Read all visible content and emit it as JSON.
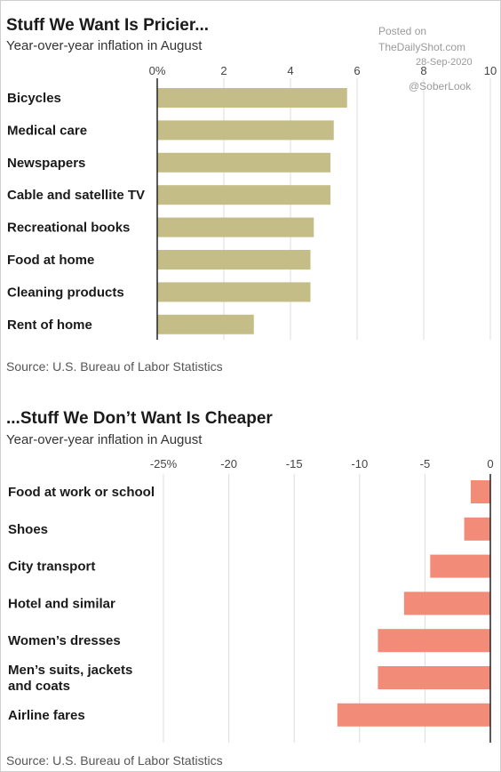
{
  "watermark": {
    "posted": "Posted on",
    "site": "TheDailyShot.com",
    "date": "28-Sep-2020",
    "handle": "@SoberLook"
  },
  "chart_data": [
    {
      "type": "bar",
      "orientation": "horizontal",
      "title": "Stuff We Want Is Pricier...",
      "subtitle": "Year-over-year inflation in August",
      "source": "Source: U.S. Bureau of Labor Statistics",
      "categories": [
        "Bicycles",
        "Medical care",
        "Newspapers",
        "Cable and satellite TV",
        "Recreational books",
        "Food at home",
        "Cleaning products",
        "Rent of home"
      ],
      "values": [
        5.7,
        5.3,
        5.2,
        5.2,
        4.7,
        4.6,
        4.6,
        2.9
      ],
      "xlim": [
        0,
        10
      ],
      "ticks": [
        0,
        2,
        4,
        6,
        8,
        10
      ],
      "tick_labels": [
        "0%",
        "2",
        "4",
        "6",
        "8",
        "10"
      ],
      "color": "#c4bd87",
      "grid": true
    },
    {
      "type": "bar",
      "orientation": "horizontal",
      "title": "...Stuff We Don’t Want Is Cheaper",
      "subtitle": "Year-over-year inflation in August",
      "source": "Source: U.S. Bureau of Labor Statistics",
      "categories": [
        "Food at work or school",
        "Shoes",
        "City transport",
        "Hotel and similar",
        "Women’s dresses",
        "Men’s suits, jackets and coats",
        "Airline fares"
      ],
      "values": [
        -1.5,
        -2.0,
        -4.6,
        -6.6,
        -8.6,
        -8.6,
        -11.7
      ],
      "xlim": [
        -25,
        0
      ],
      "ticks": [
        -25,
        -20,
        -15,
        -10,
        -5,
        0
      ],
      "tick_labels": [
        "-25%",
        "-20",
        "-15",
        "-10",
        "-5",
        "0"
      ],
      "color": "#f28b77",
      "grid": true
    }
  ]
}
